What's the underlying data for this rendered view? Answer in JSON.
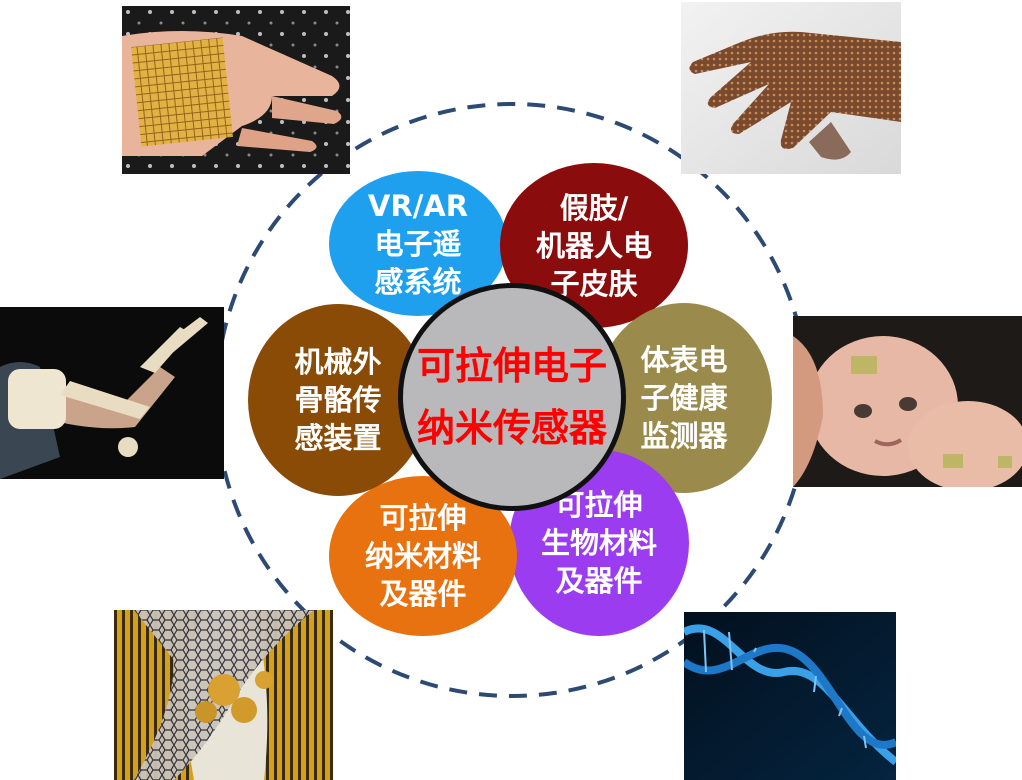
{
  "center": {
    "lines": [
      "可拉伸电子",
      "纳米传感器"
    ],
    "color": "#ff0000",
    "fill": "#b9b9bb"
  },
  "petals": [
    {
      "id": "vr-ar",
      "lines": [
        "VR/AR",
        "电子遥",
        "感系统"
      ],
      "color": "#1fa0ef"
    },
    {
      "id": "prosthetic",
      "lines": [
        "假肢/",
        "机器人电",
        "子皮肤"
      ],
      "color": "#8b0c0c"
    },
    {
      "id": "body-health",
      "lines": [
        "体表电",
        "子健康",
        "监测器"
      ],
      "color": "#9a8a4c"
    },
    {
      "id": "bio-material",
      "lines": [
        "可拉伸",
        "生物材料",
        "及器件"
      ],
      "color": "#9b3cf0"
    },
    {
      "id": "nano-material",
      "lines": [
        "可拉伸",
        "纳米材料",
        "及器件"
      ],
      "color": "#e8720f"
    },
    {
      "id": "exoskeleton",
      "lines": [
        "机械外",
        "骨骼传",
        "感装置"
      ],
      "color": "#8a4b06"
    }
  ],
  "ring": {
    "color": "#2c4a73",
    "style": "dashed"
  },
  "photos": [
    {
      "id": "hand-sensor-grid",
      "icon": "hand-with-sensor-mesh-photo"
    },
    {
      "id": "robot-hand",
      "icon": "electronic-skin-hand-photo"
    },
    {
      "id": "baby-monitor",
      "icon": "infant-with-skin-patch-photo"
    },
    {
      "id": "dna-helix",
      "icon": "dna-double-helix-photo"
    },
    {
      "id": "nanotube",
      "icon": "carbon-nanotube-structure-photo"
    },
    {
      "id": "exoskeleton-arm",
      "icon": "arm-exoskeleton-photo"
    }
  ]
}
